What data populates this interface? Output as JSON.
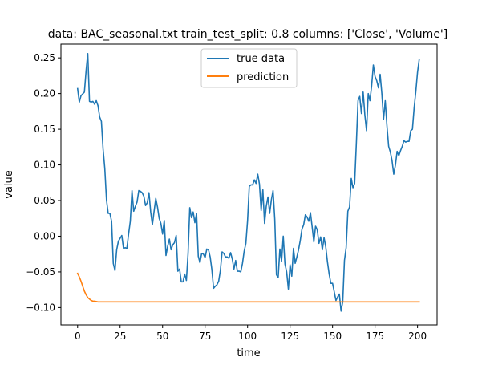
{
  "chart_data": {
    "type": "line",
    "title": "data: BAC_seasonal.txt train_test_split: 0.8 columns: ['Close', 'Volume']",
    "xlabel": "time",
    "ylabel": "value",
    "xlim": [
      -9.8,
      211.5
    ],
    "ylim": [
      -0.1243,
      0.2693
    ],
    "xticks": [
      0,
      25,
      50,
      75,
      100,
      125,
      150,
      175,
      200
    ],
    "yticks": [
      -0.1,
      -0.05,
      0.0,
      0.05,
      0.1,
      0.15,
      0.2,
      0.25
    ],
    "xtick_labels": [
      "0",
      "25",
      "50",
      "75",
      "100",
      "125",
      "150",
      "175",
      "200"
    ],
    "ytick_labels": [
      "−0.10",
      "−0.05",
      "0.00",
      "0.05",
      "0.10",
      "0.15",
      "0.20",
      "0.25"
    ],
    "grid": false,
    "legend_position": "top-center",
    "series": [
      {
        "name": "true data",
        "color": "#1f77b4",
        "points": [
          [
            0,
            0.207
          ],
          [
            1,
            0.188
          ],
          [
            2,
            0.197
          ],
          [
            4,
            0.202
          ],
          [
            5,
            0.232
          ],
          [
            6,
            0.256
          ],
          [
            7,
            0.189
          ],
          [
            8,
            0.188
          ],
          [
            9,
            0.189
          ],
          [
            10,
            0.185
          ],
          [
            11,
            0.19
          ],
          [
            12,
            0.183
          ],
          [
            13,
            0.167
          ],
          [
            14,
            0.161
          ],
          [
            15,
            0.122
          ],
          [
            16,
            0.095
          ],
          [
            17,
            0.051
          ],
          [
            18,
            0.032
          ],
          [
            19,
            0.032
          ],
          [
            20,
            0.021
          ],
          [
            21,
            -0.038
          ],
          [
            22,
            -0.048
          ],
          [
            23,
            -0.019
          ],
          [
            24,
            -0.007
          ],
          [
            25,
            -0.003
          ],
          [
            26,
            0.001
          ],
          [
            27,
            -0.017
          ],
          [
            28,
            -0.016
          ],
          [
            29,
            -0.017
          ],
          [
            30,
            0.003
          ],
          [
            31,
            0.021
          ],
          [
            32,
            0.064
          ],
          [
            33,
            0.035
          ],
          [
            34,
            0.042
          ],
          [
            35,
            0.048
          ],
          [
            36,
            0.064
          ],
          [
            37,
            0.063
          ],
          [
            38,
            0.061
          ],
          [
            39,
            0.056
          ],
          [
            40,
            0.043
          ],
          [
            41,
            0.047
          ],
          [
            42,
            0.061
          ],
          [
            43,
            0.034
          ],
          [
            44,
            0.016
          ],
          [
            45,
            0.035
          ],
          [
            46,
            0.053
          ],
          [
            47,
            0.041
          ],
          [
            48,
            0.025
          ],
          [
            49,
            0.018
          ],
          [
            50,
            0.003
          ],
          [
            51,
            0.022
          ],
          [
            52,
            -0.027
          ],
          [
            53,
            -0.014
          ],
          [
            54,
            -0.004
          ],
          [
            55,
            -0.019
          ],
          [
            56,
            -0.012
          ],
          [
            57,
            -0.009
          ],
          [
            58,
            0.001
          ],
          [
            59,
            -0.049
          ],
          [
            60,
            -0.046
          ],
          [
            61,
            -0.064
          ],
          [
            62,
            -0.064
          ],
          [
            63,
            -0.053
          ],
          [
            64,
            -0.062
          ],
          [
            65,
            -0.024
          ],
          [
            66,
            0.04
          ],
          [
            67,
            0.026
          ],
          [
            68,
            0.034
          ],
          [
            69,
            0.019
          ],
          [
            70,
            0.032
          ],
          [
            71,
            -0.028
          ],
          [
            72,
            -0.037
          ],
          [
            73,
            -0.024
          ],
          [
            74,
            -0.025
          ],
          [
            75,
            -0.03
          ],
          [
            76,
            -0.018
          ],
          [
            77,
            -0.019
          ],
          [
            78,
            -0.029
          ],
          [
            79,
            -0.047
          ],
          [
            80,
            -0.073
          ],
          [
            81,
            -0.07
          ],
          [
            82,
            -0.068
          ],
          [
            83,
            -0.063
          ],
          [
            84,
            -0.048
          ],
          [
            85,
            -0.022
          ],
          [
            86,
            -0.024
          ],
          [
            87,
            -0.029
          ],
          [
            88,
            -0.029
          ],
          [
            89,
            -0.031
          ],
          [
            90,
            -0.023
          ],
          [
            91,
            -0.032
          ],
          [
            92,
            -0.046
          ],
          [
            93,
            -0.034
          ],
          [
            94,
            -0.049
          ],
          [
            95,
            -0.049
          ],
          [
            96,
            -0.05
          ],
          [
            97,
            -0.038
          ],
          [
            98,
            -0.021
          ],
          [
            99,
            -0.01
          ],
          [
            100,
            0.022
          ],
          [
            101,
            0.07
          ],
          [
            102,
            0.072
          ],
          [
            103,
            0.072
          ],
          [
            104,
            0.079
          ],
          [
            105,
            0.074
          ],
          [
            106,
            0.087
          ],
          [
            107,
            0.073
          ],
          [
            108,
            0.036
          ],
          [
            109,
            0.065
          ],
          [
            110,
            0.018
          ],
          [
            111,
            0.042
          ],
          [
            112,
            0.055
          ],
          [
            113,
            0.032
          ],
          [
            114,
            0.051
          ],
          [
            115,
            0.064
          ],
          [
            116,
            0.024
          ],
          [
            117,
            -0.054
          ],
          [
            118,
            -0.058
          ],
          [
            119,
            -0.018
          ],
          [
            120,
            -0.035
          ],
          [
            121,
            0.0
          ],
          [
            122,
            -0.039
          ],
          [
            123,
            -0.05
          ],
          [
            124,
            -0.074
          ],
          [
            125,
            -0.04
          ],
          [
            126,
            -0.056
          ],
          [
            127,
            -0.017
          ],
          [
            128,
            -0.038
          ],
          [
            129,
            -0.029
          ],
          [
            130,
            -0.019
          ],
          [
            131,
            -0.006
          ],
          [
            132,
            0.01
          ],
          [
            133,
            0.016
          ],
          [
            134,
            0.03
          ],
          [
            135,
            0.027
          ],
          [
            136,
            0.021
          ],
          [
            137,
            0.033
          ],
          [
            138,
            0.013
          ],
          [
            139,
            -0.008
          ],
          [
            140,
            0.014
          ],
          [
            141,
            0.009
          ],
          [
            142,
            -0.01
          ],
          [
            143,
            -0.001
          ],
          [
            144,
            -0.019
          ],
          [
            145,
            -0.002
          ],
          [
            146,
            -0.015
          ],
          [
            147,
            -0.036
          ],
          [
            148,
            -0.053
          ],
          [
            149,
            -0.066
          ],
          [
            150,
            -0.066
          ],
          [
            151,
            -0.078
          ],
          [
            152,
            -0.09
          ],
          [
            153,
            -0.085
          ],
          [
            154,
            -0.081
          ],
          [
            155,
            -0.105
          ],
          [
            156,
            -0.092
          ],
          [
            157,
            -0.034
          ],
          [
            158,
            -0.016
          ],
          [
            159,
            0.035
          ],
          [
            160,
            0.041
          ],
          [
            161,
            0.081
          ],
          [
            162,
            0.068
          ],
          [
            163,
            0.074
          ],
          [
            164,
            0.13
          ],
          [
            165,
            0.19
          ],
          [
            166,
            0.196
          ],
          [
            167,
            0.172
          ],
          [
            168,
            0.202
          ],
          [
            169,
            0.17
          ],
          [
            170,
            0.148
          ],
          [
            171,
            0.2
          ],
          [
            172,
            0.19
          ],
          [
            173,
            0.211
          ],
          [
            174,
            0.24
          ],
          [
            175,
            0.224
          ],
          [
            176,
            0.218
          ],
          [
            177,
            0.208
          ],
          [
            178,
            0.227
          ],
          [
            179,
            0.2
          ],
          [
            180,
            0.164
          ],
          [
            181,
            0.19
          ],
          [
            182,
            0.155
          ],
          [
            183,
            0.126
          ],
          [
            184,
            0.118
          ],
          [
            185,
            0.106
          ],
          [
            186,
            0.087
          ],
          [
            187,
            0.1
          ],
          [
            188,
            0.119
          ],
          [
            189,
            0.113
          ],
          [
            190,
            0.12
          ],
          [
            191,
            0.126
          ],
          [
            192,
            0.134
          ],
          [
            193,
            0.132
          ],
          [
            194,
            0.133
          ],
          [
            195,
            0.133
          ],
          [
            196,
            0.148
          ],
          [
            197,
            0.15
          ],
          [
            198,
            0.18
          ],
          [
            199,
            0.203
          ],
          [
            200,
            0.23
          ],
          [
            201,
            0.248
          ]
        ]
      },
      {
        "name": "prediction",
        "color": "#ff7f0e",
        "points": [
          [
            0,
            -0.052
          ],
          [
            1,
            -0.057
          ],
          [
            2,
            -0.063
          ],
          [
            3,
            -0.07
          ],
          [
            4,
            -0.077
          ],
          [
            5,
            -0.082
          ],
          [
            6,
            -0.086
          ],
          [
            7,
            -0.088
          ],
          [
            8,
            -0.09
          ],
          [
            9,
            -0.091
          ],
          [
            10,
            -0.091
          ],
          [
            12,
            -0.092
          ],
          [
            15,
            -0.092
          ],
          [
            50,
            -0.092
          ],
          [
            100,
            -0.092
          ],
          [
            150,
            -0.092
          ],
          [
            201,
            -0.092
          ]
        ]
      }
    ]
  }
}
